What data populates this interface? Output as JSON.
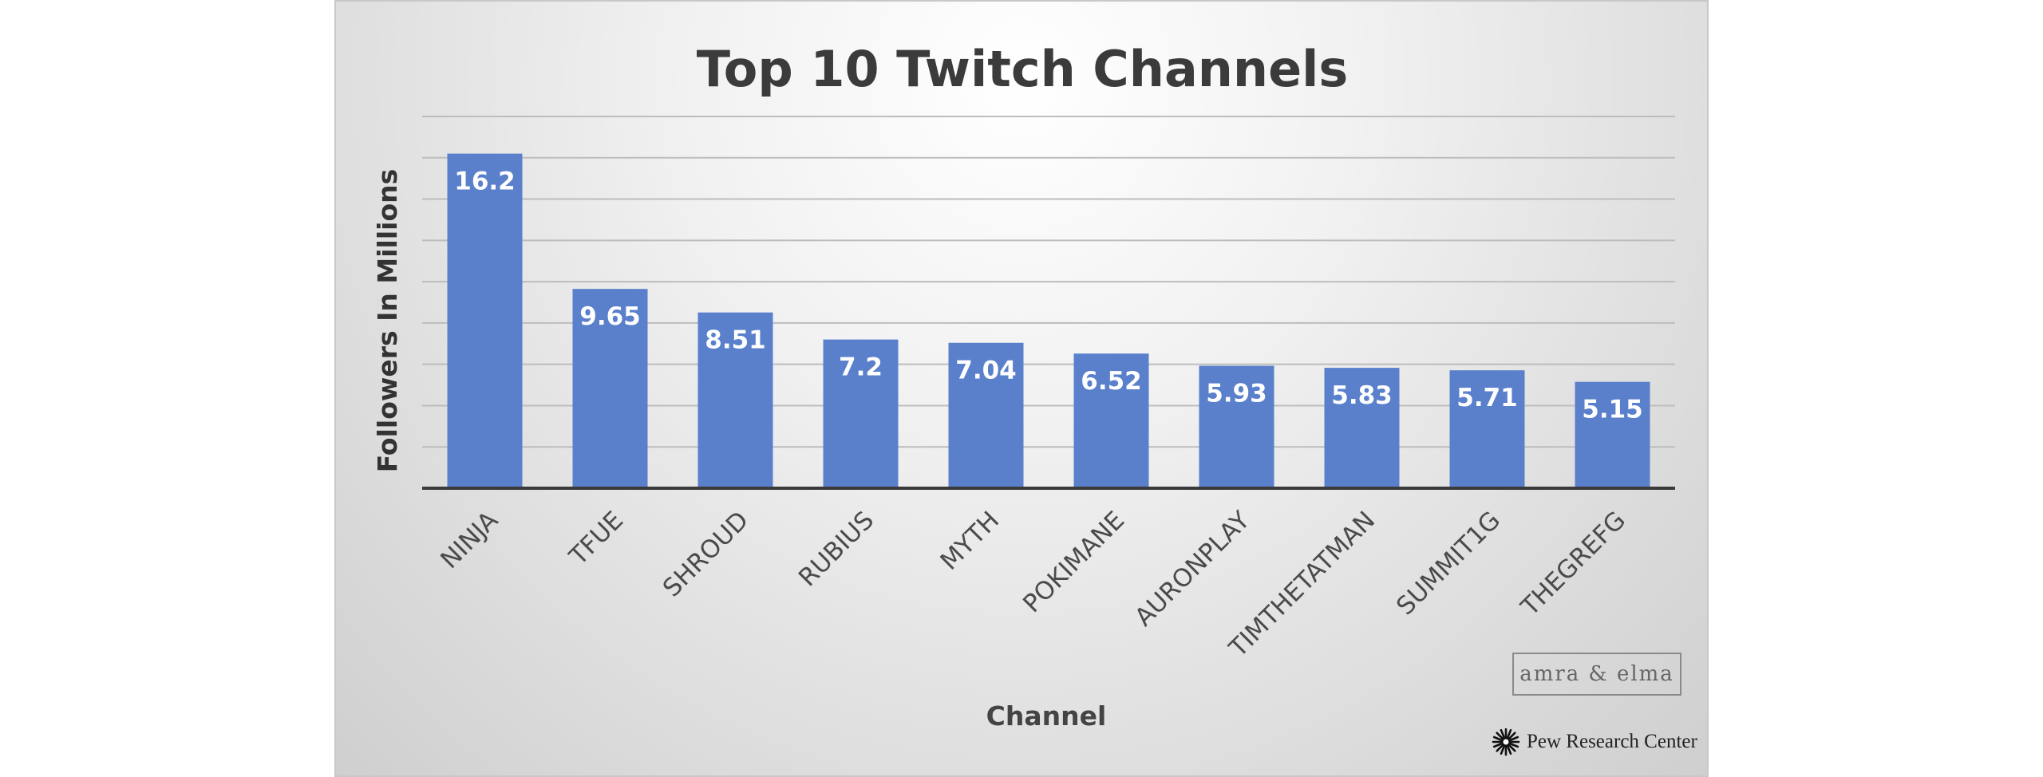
{
  "chart_data": {
    "type": "bar",
    "title": "Top 10 Twitch Channels",
    "xlabel": "Channel",
    "ylabel": "Followers In Millions",
    "categories": [
      "NINJA",
      "TFUE",
      "SHROUD",
      "RUBIUS",
      "MYTH",
      "POKIMANE",
      "AURONPLAY",
      "TIMTHETATMAN",
      "SUMMIT1G",
      "THEGREFG"
    ],
    "values": [
      16.2,
      9.65,
      8.51,
      7.2,
      7.04,
      6.52,
      5.93,
      5.83,
      5.71,
      5.15
    ],
    "data_labels": [
      "16.2",
      "9.65",
      "8.51",
      "7.2",
      "7.04",
      "6.52",
      "5.93",
      "5.83",
      "5.71",
      "5.15"
    ],
    "ylim": [
      0,
      18
    ],
    "grid": true,
    "legend": "none",
    "bar_color": "#5a80cc"
  },
  "watermarks": {
    "brand": "amra & elma",
    "source": "Pew Research Center"
  }
}
